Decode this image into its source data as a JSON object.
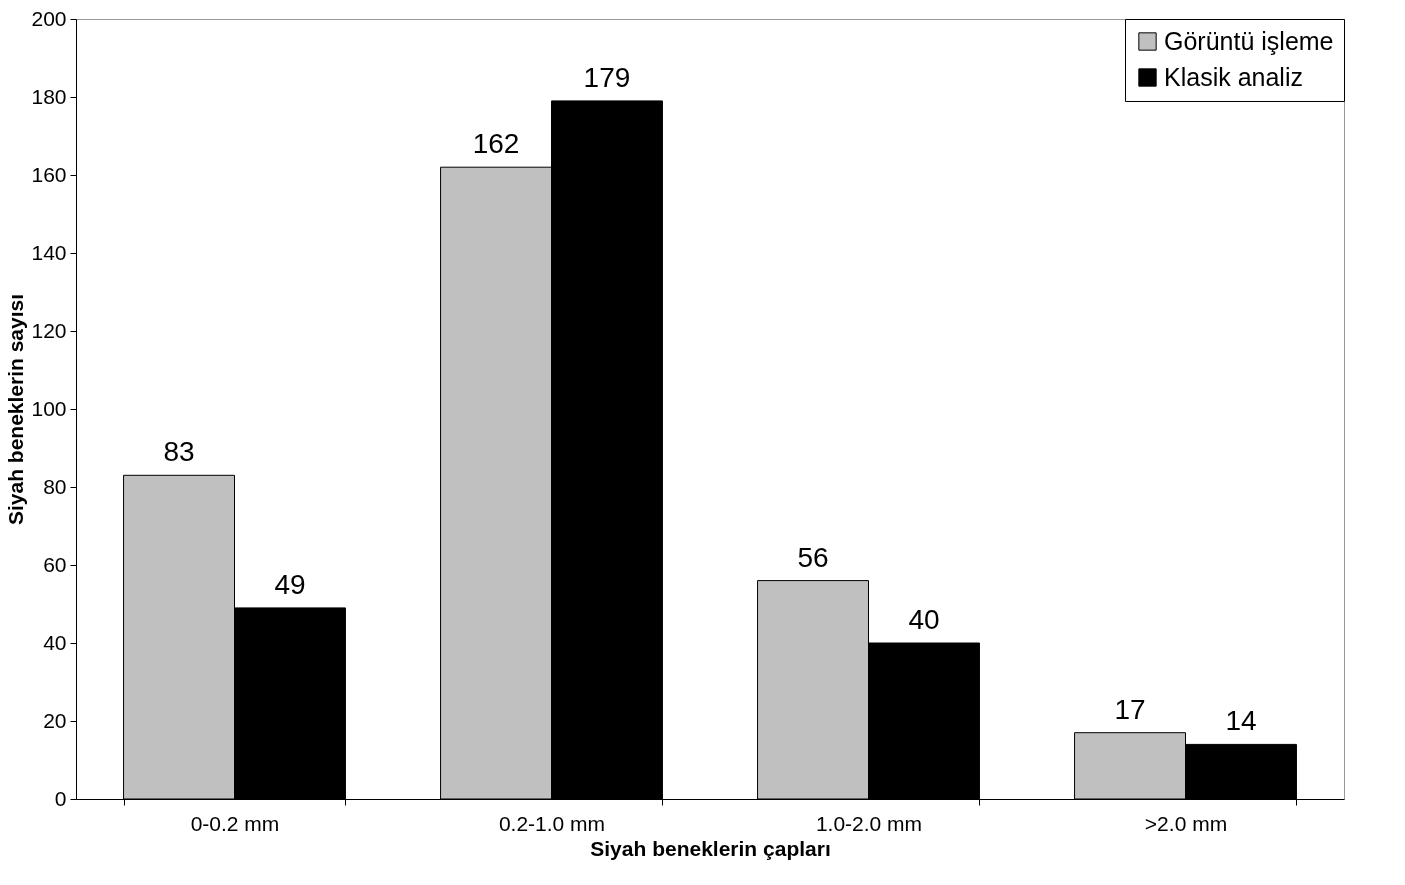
{
  "chart_data": {
    "type": "bar",
    "xlabel": "Siyah beneklerin çapları",
    "ylabel": "Siyah beneklerin sayısı",
    "categories": [
      "0-0.2 mm",
      "0.2-1.0 mm",
      "1.0-2.0 mm",
      ">2.0 mm"
    ],
    "series": [
      {
        "name": "Görüntü işleme",
        "color": "#c0c0c0",
        "values": [
          83,
          162,
          56,
          17
        ]
      },
      {
        "name": "Klasik analiz",
        "color": "#000000",
        "values": [
          49,
          179,
          40,
          14
        ]
      }
    ],
    "ylim": [
      0,
      200
    ],
    "yticks": [
      0,
      20,
      40,
      60,
      80,
      100,
      120,
      140,
      160,
      180,
      200
    ],
    "legend": "top right",
    "data_labels": true
  }
}
